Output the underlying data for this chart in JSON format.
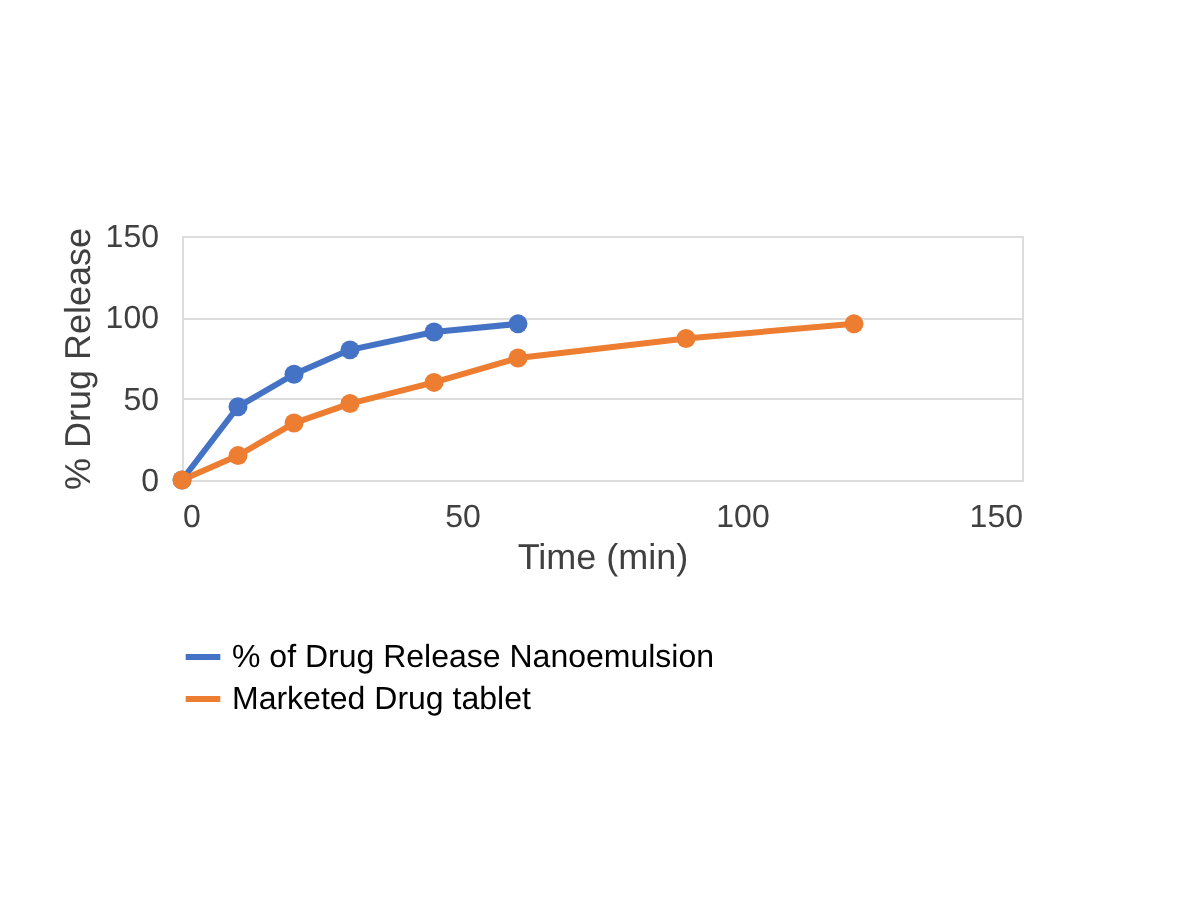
{
  "chart_data": {
    "type": "line",
    "xlabel": "Time (min)",
    "ylabel": "% Drug Release",
    "xlim": [
      0,
      150
    ],
    "xticks": [
      0,
      50,
      100,
      150
    ],
    "ylim": [
      0,
      150
    ],
    "yticks": [
      0,
      50,
      100,
      150
    ],
    "grid": "y",
    "legend": "bottom",
    "marker": "circle",
    "line_style": "solid",
    "series": [
      {
        "name": "% of Drug Release Nanoemulsion",
        "color": "#4472c4",
        "x": [
          0,
          10,
          20,
          30,
          45,
          60
        ],
        "values": [
          0,
          45,
          65,
          80,
          91,
          96
        ]
      },
      {
        "name": "Marketed Drug tablet",
        "color": "#ed7d31",
        "x": [
          0,
          10,
          20,
          30,
          45,
          60,
          90,
          120
        ],
        "values": [
          0,
          15,
          35,
          47,
          60,
          75,
          87,
          96
        ]
      }
    ]
  }
}
